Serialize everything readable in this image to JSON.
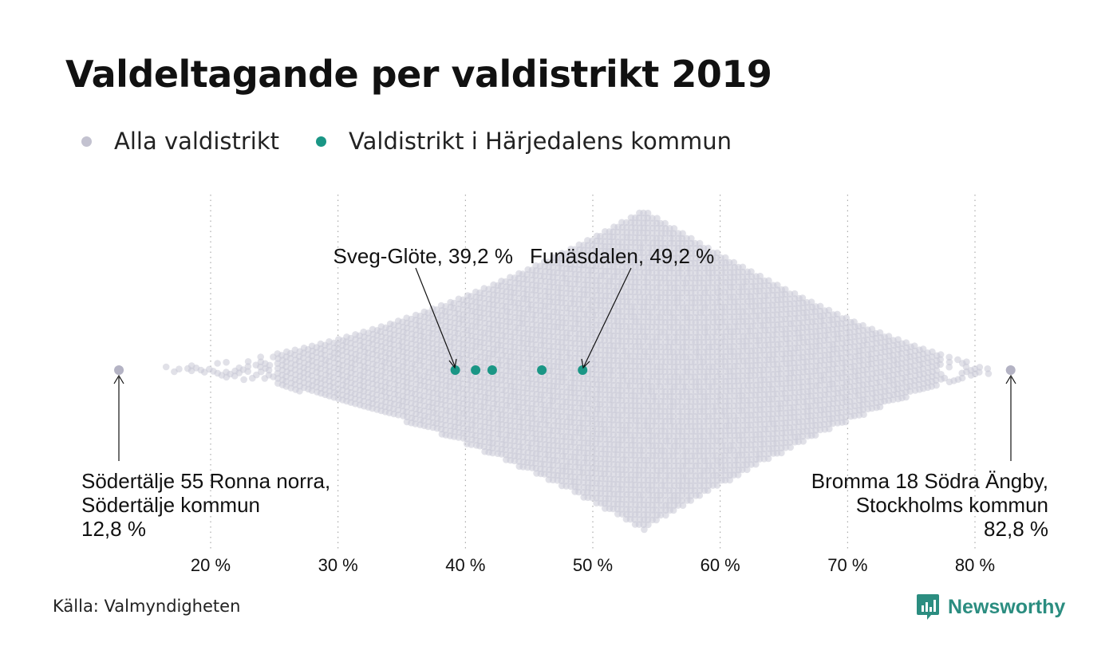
{
  "title": "Valdeltagande per valdistrikt 2019",
  "legend": {
    "all": "Alla valdistrikt",
    "highlight": "Valdistrikt i Härjedalens kommun"
  },
  "colors": {
    "all_districts": "#c9c8d6",
    "highlight": "#1a9685",
    "grid": "#9b9b9b",
    "brand": "#2b8d80"
  },
  "source": "Källa: Valmyndigheten",
  "brand": "Newsworthy",
  "icons": {
    "brand_logo": "bar-chart-speech-bubble-icon"
  },
  "annotations": {
    "sveg": "Sveg-Glöte, 39,2 %",
    "funasdalen": "Funäsdalen, 49,2 %",
    "min": [
      "Södertälje 55 Ronna norra,",
      "Södertälje kommun",
      "12,8 %"
    ],
    "max": [
      "Bromma 18 Södra Ängby,",
      "Stockholms kommun",
      "82,8 %"
    ]
  },
  "chart_data": {
    "type": "scatter",
    "subtype": "beeswarm",
    "xlabel": "",
    "ylabel": "",
    "xlim": [
      12,
      84
    ],
    "x_ticks": [
      20,
      30,
      40,
      50,
      60,
      70,
      80
    ],
    "x_tick_labels": [
      "20 %",
      "30 %",
      "40 %",
      "50 %",
      "60 %",
      "70 %",
      "80 %"
    ],
    "grid": "vertical dotted",
    "legend_position": "top-left",
    "distribution_peak": 54,
    "series": [
      {
        "name": "Alla valdistrikt",
        "min": {
          "district": "Södertälje 55 Ronna norra, Södertälje kommun",
          "value": 12.8
        },
        "max": {
          "district": "Bromma 18 Södra Ängby, Stockholms kommun",
          "value": 82.8
        }
      },
      {
        "name": "Valdistrikt i Härjedalens kommun",
        "values": [
          39.2,
          40.8,
          42.1,
          46.0,
          49.2
        ],
        "labeled": [
          {
            "district": "Sveg-Glöte",
            "value": 39.2
          },
          {
            "district": "Funäsdalen",
            "value": 49.2
          }
        ]
      }
    ]
  }
}
